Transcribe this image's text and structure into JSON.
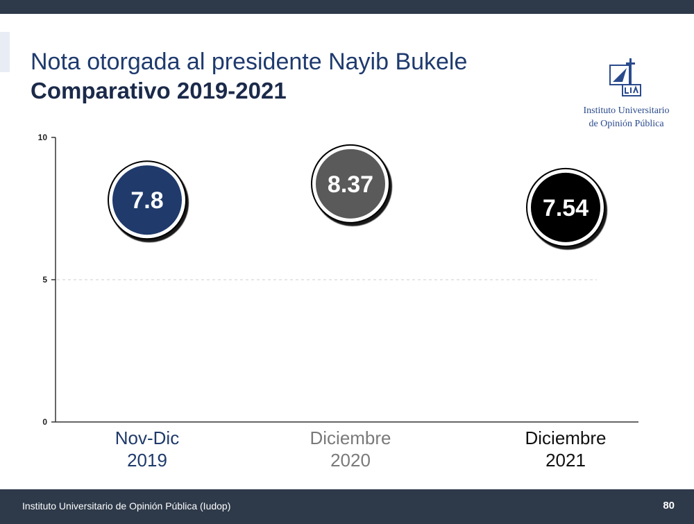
{
  "slide": {
    "title": "Nota otorgada al presidente Nayib Bukele",
    "subtitle": "Comparativo 2019-2021"
  },
  "logo": {
    "name": "Instituto Universitario de Opinión Pública",
    "text_line1": "Instituto Universitario",
    "text_line2": "de Opinión Pública"
  },
  "chart_data": {
    "type": "scatter",
    "categories": [
      {
        "line1": "Nov-Dic",
        "line2": "2019",
        "value": 7.8,
        "label": "7.8",
        "color": "#1f3a6b",
        "label_color": "#1f3a6b"
      },
      {
        "line1": "Diciembre",
        "line2": "2020",
        "value": 8.37,
        "label": "8.37",
        "color": "#5a5a5a",
        "label_color": "#7a7a7a"
      },
      {
        "line1": "Diciembre",
        "line2": "2021",
        "value": 7.54,
        "label": "7.54",
        "color": "#000000",
        "label_color": "#111111"
      }
    ],
    "yticks": [
      0,
      5,
      10
    ],
    "ylim": [
      0,
      10
    ],
    "grid": "dashed line at 5"
  },
  "footer": {
    "text": "Instituto Universitario de Opinión Pública (Iudop)",
    "page": "80"
  }
}
